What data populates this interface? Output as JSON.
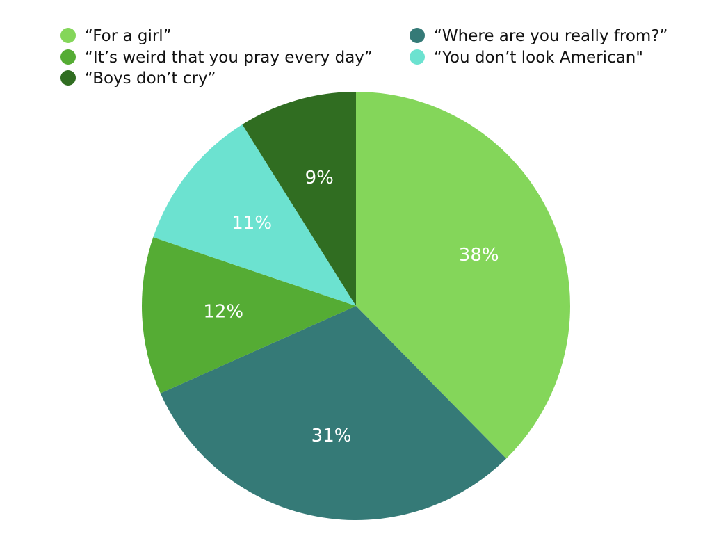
{
  "chart_data": {
    "type": "pie",
    "legend_position": "top",
    "start_angle": "12 o'clock",
    "direction": "clockwise",
    "slices": [
      {
        "label": "“For a girl”",
        "value": 38,
        "value_label": "38%",
        "color": "#84d65a"
      },
      {
        "label": "“Where are you really from?”",
        "value": 31,
        "value_label": "31%",
        "color": "#357a77"
      },
      {
        "label": "“It’s weird that you pray every day”",
        "value": 12,
        "value_label": "12%",
        "color": "#55ac34"
      },
      {
        "label": "“You don’t look American\"",
        "value": 11,
        "value_label": "11%",
        "color": "#6ce2d0"
      },
      {
        "label": "“Boys don’t cry”",
        "value": 9,
        "value_label": "9%",
        "color": "#306d21"
      }
    ],
    "legend_order": [
      0,
      2,
      4,
      1,
      3
    ]
  }
}
